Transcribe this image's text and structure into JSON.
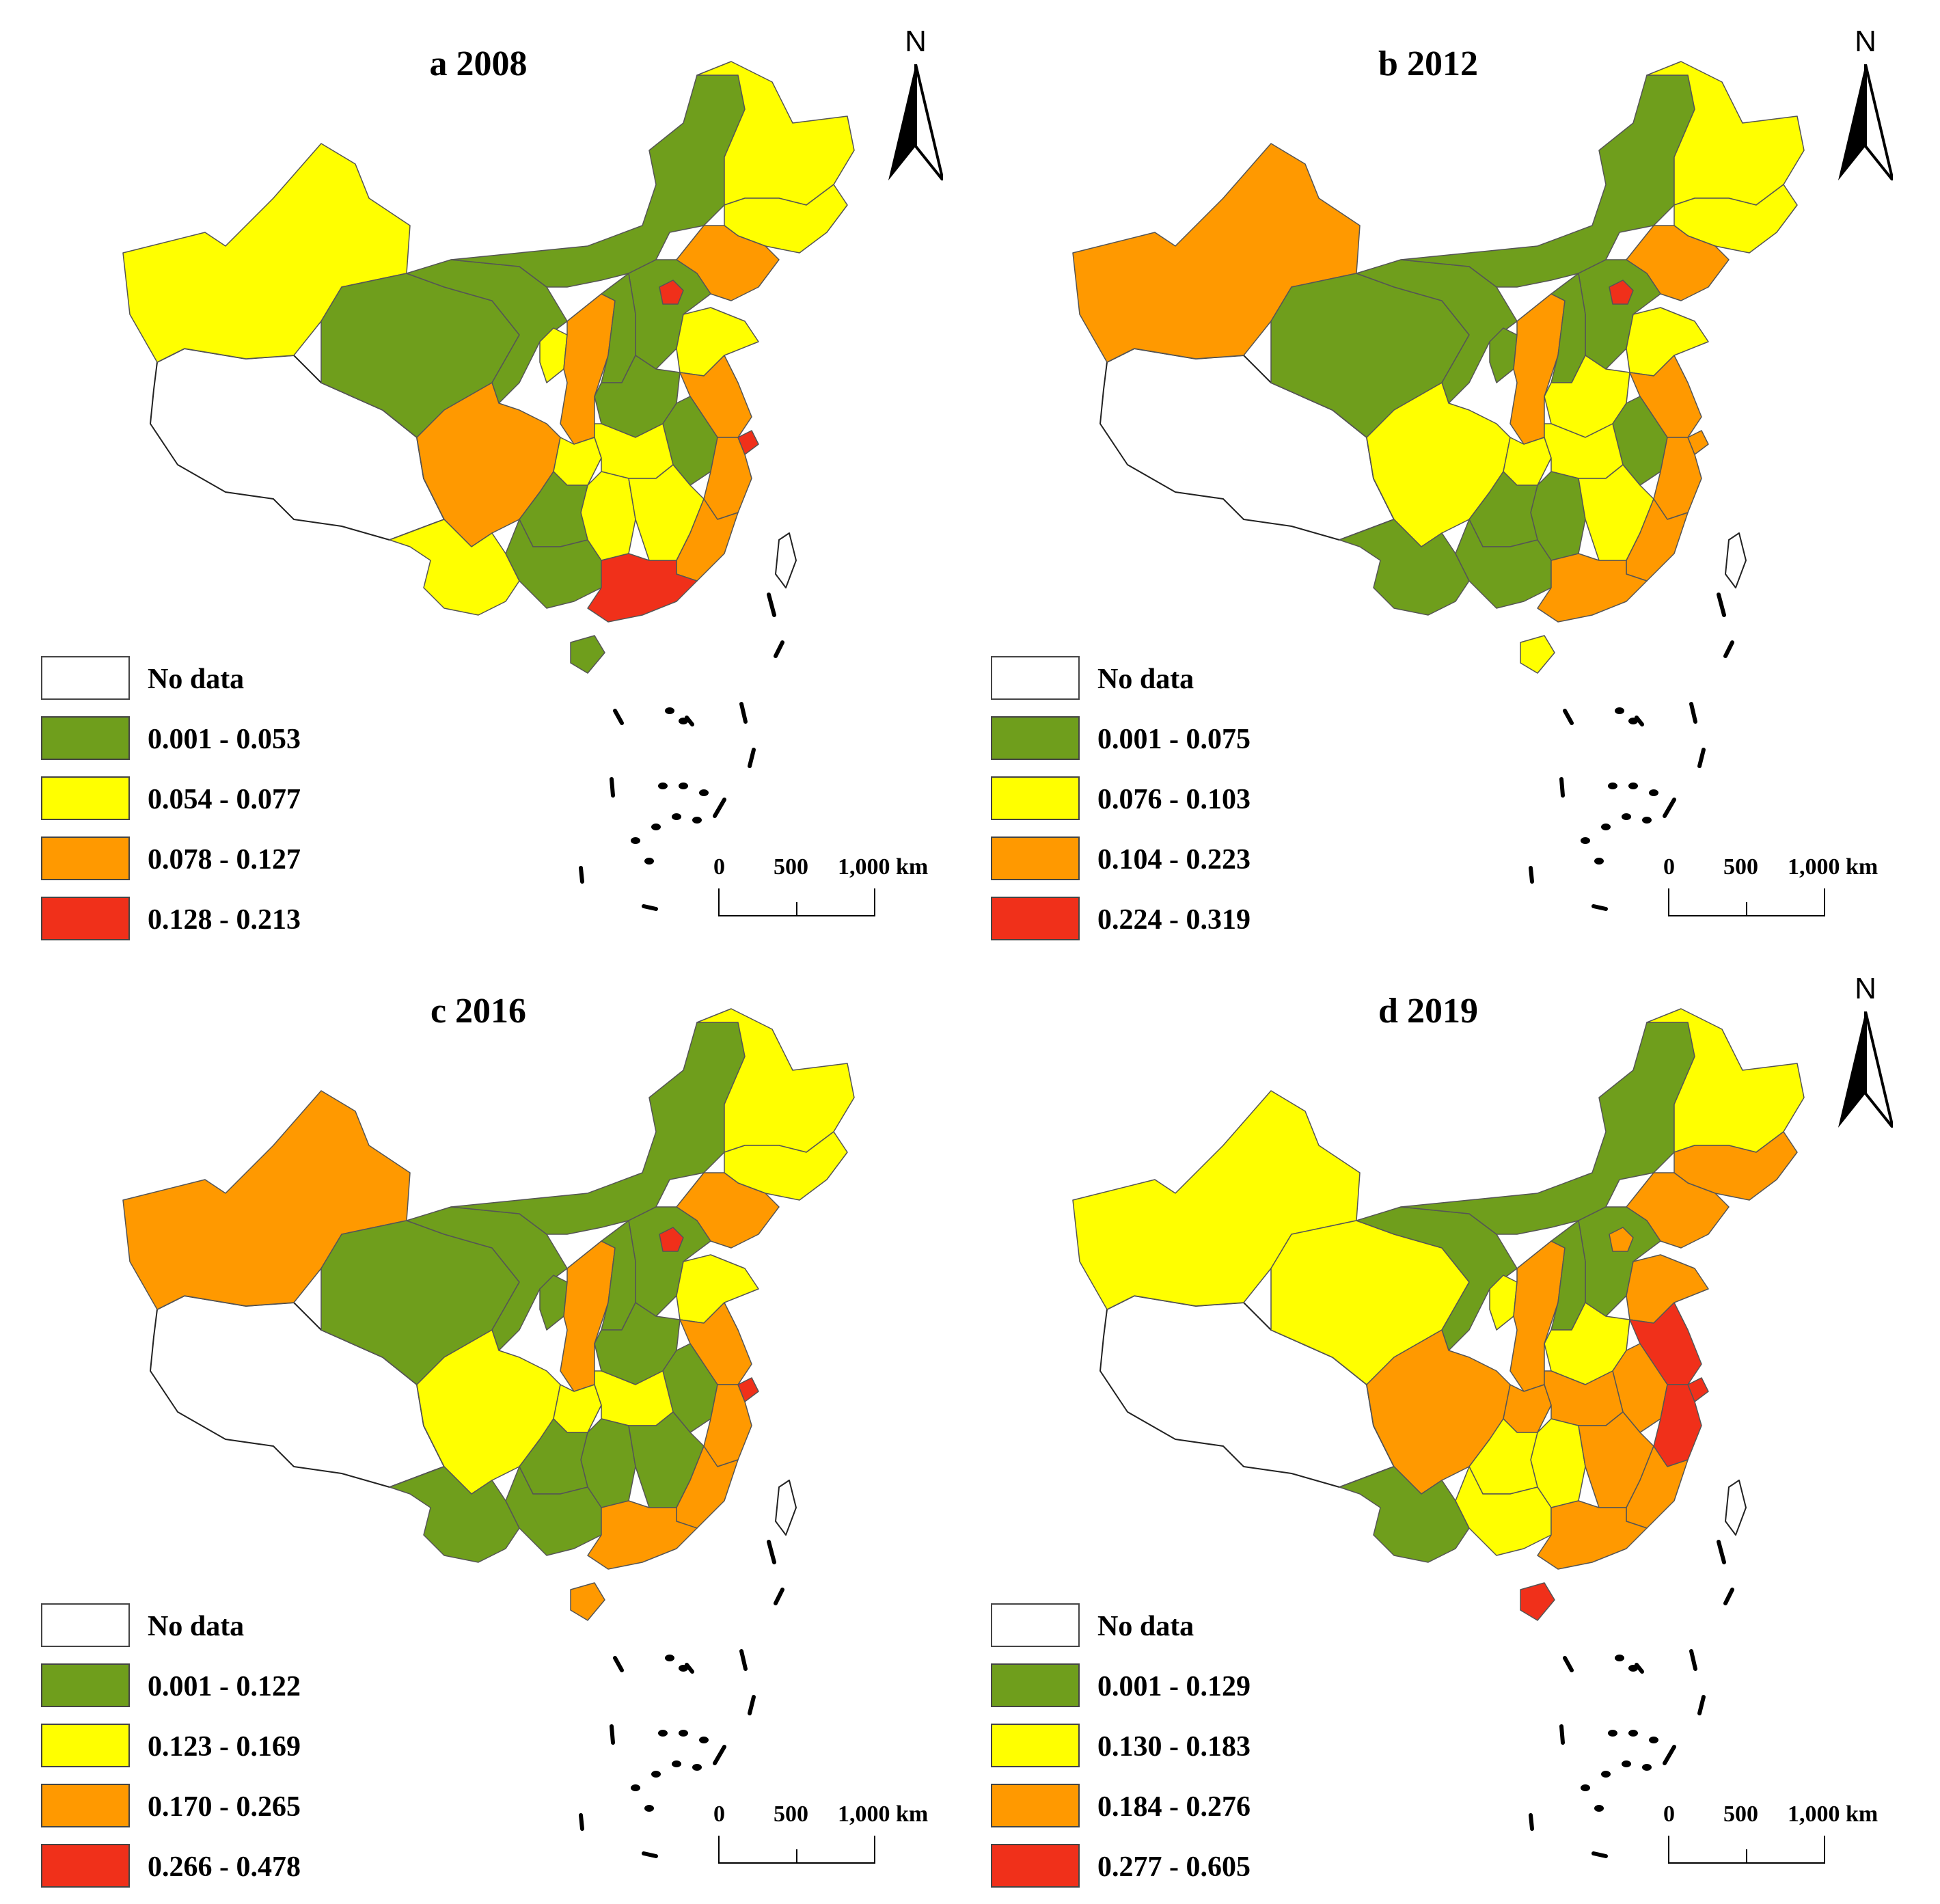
{
  "colors": {
    "no_data": "#ffffff",
    "class1": "#6f9e1c",
    "class2": "#ffff00",
    "class3": "#ff9900",
    "class4": "#f0301a",
    "border": "#555555"
  },
  "north_label": "N",
  "scale": {
    "t0": "0",
    "t500": "500",
    "t1000": "1,000 km"
  },
  "panels": [
    {
      "title": "a 2008",
      "legend": [
        "No data",
        "0.001 - 0.053",
        "0.054 - 0.077",
        "0.078 - 0.127",
        "0.128 - 0.213"
      ],
      "regions": {
        "xinjiang": 2,
        "tibet": 0,
        "qinghai": 1,
        "gansu": 1,
        "inner_mongolia": 1,
        "heilongjiang": 2,
        "jilin": 2,
        "liaoning": 3,
        "beijing": 4,
        "hebei": 1,
        "shandong": 2,
        "ningxia": 2,
        "shaanxi": 3,
        "shanxi": 1,
        "henan": 1,
        "jiangsu": 3,
        "shanghai": 4,
        "anhui": 1,
        "sichuan": 3,
        "chongqing": 2,
        "hubei": 2,
        "zhejiang": 3,
        "hunan": 2,
        "jiangxi": 2,
        "fujian": 3,
        "yunnan": 2,
        "guizhou": 1,
        "guangxi": 1,
        "guangdong": 4,
        "hainan": 1,
        "taiwan": 0
      }
    },
    {
      "title": "b 2012",
      "legend": [
        "No data",
        "0.001 - 0.075",
        "0.076 - 0.103",
        "0.104 - 0.223",
        "0.224 - 0.319"
      ],
      "regions": {
        "xinjiang": 3,
        "tibet": 0,
        "qinghai": 1,
        "gansu": 1,
        "inner_mongolia": 1,
        "heilongjiang": 2,
        "jilin": 2,
        "liaoning": 3,
        "beijing": 4,
        "hebei": 1,
        "shandong": 2,
        "ningxia": 1,
        "shaanxi": 3,
        "shanxi": 1,
        "henan": 2,
        "jiangsu": 3,
        "shanghai": 3,
        "anhui": 1,
        "sichuan": 2,
        "chongqing": 2,
        "hubei": 2,
        "zhejiang": 3,
        "hunan": 1,
        "jiangxi": 2,
        "fujian": 3,
        "yunnan": 1,
        "guizhou": 1,
        "guangxi": 1,
        "guangdong": 3,
        "hainan": 2,
        "taiwan": 0
      }
    },
    {
      "title": "c 2016",
      "legend": [
        "No data",
        "0.001 - 0.122",
        "0.123 - 0.169",
        "0.170 - 0.265",
        "0.266 - 0.478"
      ],
      "regions": {
        "xinjiang": 3,
        "tibet": 0,
        "qinghai": 1,
        "gansu": 1,
        "inner_mongolia": 1,
        "heilongjiang": 2,
        "jilin": 2,
        "liaoning": 3,
        "beijing": 4,
        "hebei": 1,
        "shandong": 2,
        "ningxia": 1,
        "shaanxi": 3,
        "shanxi": 1,
        "henan": 1,
        "jiangsu": 3,
        "shanghai": 4,
        "anhui": 1,
        "sichuan": 2,
        "chongqing": 2,
        "hubei": 2,
        "zhejiang": 3,
        "hunan": 1,
        "jiangxi": 1,
        "fujian": 3,
        "yunnan": 1,
        "guizhou": 1,
        "guangxi": 1,
        "guangdong": 3,
        "hainan": 3,
        "taiwan": 0
      }
    },
    {
      "title": "d 2019",
      "legend": [
        "No data",
        "0.001 - 0.129",
        "0.130 - 0.183",
        "0.184 - 0.276",
        "0.277 - 0.605"
      ],
      "regions": {
        "xinjiang": 2,
        "tibet": 0,
        "qinghai": 2,
        "gansu": 1,
        "inner_mongolia": 1,
        "heilongjiang": 2,
        "jilin": 3,
        "liaoning": 3,
        "beijing": 3,
        "hebei": 1,
        "shandong": 3,
        "ningxia": 2,
        "shaanxi": 3,
        "shanxi": 1,
        "henan": 2,
        "jiangsu": 4,
        "shanghai": 4,
        "anhui": 3,
        "sichuan": 3,
        "chongqing": 3,
        "hubei": 3,
        "zhejiang": 4,
        "hunan": 2,
        "jiangxi": 3,
        "fujian": 3,
        "yunnan": 1,
        "guizhou": 2,
        "guangxi": 2,
        "guangdong": 3,
        "hainan": 4,
        "taiwan": 0
      }
    }
  ]
}
